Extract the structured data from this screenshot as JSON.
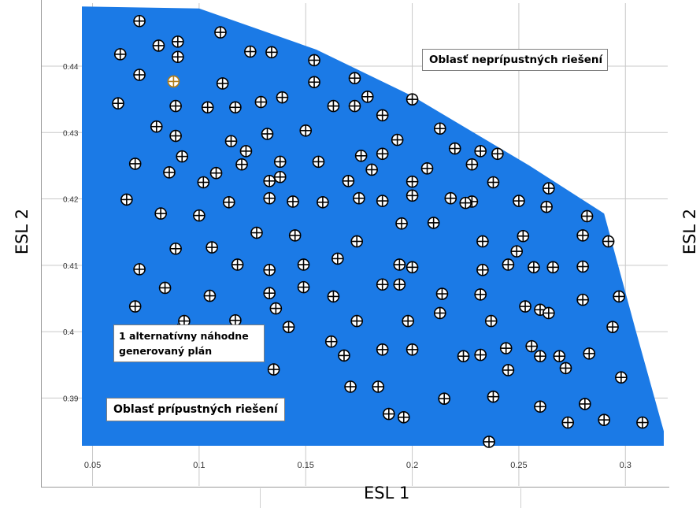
{
  "chart_data": {
    "type": "scatter",
    "xlabel": "ESL 1",
    "ylabel": "ESL 2",
    "right_ylabel": "ESL 2",
    "xlim": [
      0.045,
      0.318
    ],
    "ylim": [
      0.3828,
      0.4495
    ],
    "x_ticks": [
      {
        "value": 0.05,
        "label": "0.05"
      },
      {
        "value": 0.1,
        "label": "0.1"
      },
      {
        "value": 0.15,
        "label": "0.15"
      },
      {
        "value": 0.2,
        "label": "0.2"
      },
      {
        "value": 0.25,
        "label": "0.25"
      },
      {
        "value": 0.3,
        "label": "0.3"
      }
    ],
    "y_ticks": [
      {
        "value": 0.39,
        "label": "0.39"
      },
      {
        "value": 0.4,
        "label": "0.4"
      },
      {
        "value": 0.41,
        "label": "0.41"
      },
      {
        "value": 0.42,
        "label": "0.42"
      },
      {
        "value": 0.43,
        "label": "0.43"
      },
      {
        "value": 0.44,
        "label": "0.44"
      }
    ],
    "grid": true,
    "feasible_region": {
      "color": "#1b7ae6",
      "label": "Oblasť prípustných riešení",
      "boundary": [
        [
          0.045,
          0.449
        ],
        [
          0.1,
          0.4487
        ],
        [
          0.155,
          0.4425
        ],
        [
          0.2,
          0.4355
        ],
        [
          0.255,
          0.425
        ],
        [
          0.29,
          0.4178
        ],
        [
          0.305,
          0.4
        ],
        [
          0.318,
          0.385
        ],
        [
          0.318,
          0.3828
        ],
        [
          0.045,
          0.3828
        ]
      ]
    },
    "infeasible_region": {
      "label": "Oblasť neprípustných riešení"
    },
    "annotation": {
      "text": "1 alternatívny náhodne generovaný plán",
      "x": 0.09,
      "y": 0.4004
    },
    "marker_color": "#000000",
    "highlight_color": "#b07d1a",
    "highlighted_point": [
      0.088,
      0.4377
    ],
    "points": [
      [
        0.072,
        0.4468
      ],
      [
        0.063,
        0.4418
      ],
      [
        0.081,
        0.4431
      ],
      [
        0.09,
        0.4437
      ],
      [
        0.09,
        0.4414
      ],
      [
        0.072,
        0.4387
      ],
      [
        0.11,
        0.4451
      ],
      [
        0.062,
        0.4344
      ],
      [
        0.088,
        0.4377
      ],
      [
        0.111,
        0.4374
      ],
      [
        0.089,
        0.434
      ],
      [
        0.104,
        0.4338
      ],
      [
        0.117,
        0.4338
      ],
      [
        0.129,
        0.4346
      ],
      [
        0.124,
        0.4422
      ],
      [
        0.134,
        0.4421
      ],
      [
        0.154,
        0.4409
      ],
      [
        0.154,
        0.4376
      ],
      [
        0.139,
        0.4353
      ],
      [
        0.163,
        0.434
      ],
      [
        0.173,
        0.4382
      ],
      [
        0.179,
        0.4354
      ],
      [
        0.173,
        0.434
      ],
      [
        0.186,
        0.4326
      ],
      [
        0.2,
        0.435
      ],
      [
        0.08,
        0.4309
      ],
      [
        0.089,
        0.4295
      ],
      [
        0.115,
        0.4287
      ],
      [
        0.122,
        0.4272
      ],
      [
        0.132,
        0.4298
      ],
      [
        0.15,
        0.4303
      ],
      [
        0.07,
        0.4253
      ],
      [
        0.086,
        0.424
      ],
      [
        0.092,
        0.4264
      ],
      [
        0.102,
        0.4225
      ],
      [
        0.108,
        0.4239
      ],
      [
        0.12,
        0.4252
      ],
      [
        0.133,
        0.4227
      ],
      [
        0.138,
        0.4256
      ],
      [
        0.138,
        0.4233
      ],
      [
        0.156,
        0.4256
      ],
      [
        0.176,
        0.4265
      ],
      [
        0.186,
        0.4268
      ],
      [
        0.193,
        0.4289
      ],
      [
        0.181,
        0.4244
      ],
      [
        0.17,
        0.4227
      ],
      [
        0.2,
        0.4226
      ],
      [
        0.207,
        0.4246
      ],
      [
        0.213,
        0.4306
      ],
      [
        0.22,
        0.4276
      ],
      [
        0.228,
        0.4252
      ],
      [
        0.232,
        0.4272
      ],
      [
        0.24,
        0.4268
      ],
      [
        0.238,
        0.4225
      ],
      [
        0.066,
        0.4199
      ],
      [
        0.082,
        0.4178
      ],
      [
        0.1,
        0.4175
      ],
      [
        0.114,
        0.4195
      ],
      [
        0.133,
        0.4201
      ],
      [
        0.144,
        0.4196
      ],
      [
        0.158,
        0.4195
      ],
      [
        0.175,
        0.4201
      ],
      [
        0.186,
        0.4197
      ],
      [
        0.2,
        0.4205
      ],
      [
        0.218,
        0.4201
      ],
      [
        0.228,
        0.4196
      ],
      [
        0.225,
        0.4194
      ],
      [
        0.25,
        0.4197
      ],
      [
        0.264,
        0.4216
      ],
      [
        0.263,
        0.4188
      ],
      [
        0.282,
        0.4174
      ],
      [
        0.127,
        0.4149
      ],
      [
        0.145,
        0.4145
      ],
      [
        0.174,
        0.4136
      ],
      [
        0.195,
        0.4163
      ],
      [
        0.21,
        0.4164
      ],
      [
        0.233,
        0.4136
      ],
      [
        0.252,
        0.4144
      ],
      [
        0.249,
        0.4121
      ],
      [
        0.28,
        0.4145
      ],
      [
        0.292,
        0.4136
      ],
      [
        0.089,
        0.4125
      ],
      [
        0.106,
        0.4127
      ],
      [
        0.118,
        0.4101
      ],
      [
        0.133,
        0.4093
      ],
      [
        0.149,
        0.4101
      ],
      [
        0.165,
        0.411
      ],
      [
        0.194,
        0.4101
      ],
      [
        0.2,
        0.4097
      ],
      [
        0.233,
        0.4093
      ],
      [
        0.245,
        0.4101
      ],
      [
        0.257,
        0.4097
      ],
      [
        0.266,
        0.4097
      ],
      [
        0.28,
        0.4098
      ],
      [
        0.072,
        0.4094
      ],
      [
        0.084,
        0.4066
      ],
      [
        0.105,
        0.4054
      ],
      [
        0.133,
        0.4058
      ],
      [
        0.149,
        0.4067
      ],
      [
        0.163,
        0.4053
      ],
      [
        0.186,
        0.4071
      ],
      [
        0.194,
        0.4071
      ],
      [
        0.214,
        0.4057
      ],
      [
        0.232,
        0.4056
      ],
      [
        0.07,
        0.4038
      ],
      [
        0.093,
        0.4016
      ],
      [
        0.117,
        0.4017
      ],
      [
        0.136,
        0.4035
      ],
      [
        0.142,
        0.4007
      ],
      [
        0.174,
        0.4016
      ],
      [
        0.198,
        0.4016
      ],
      [
        0.213,
        0.4028
      ],
      [
        0.237,
        0.4016
      ],
      [
        0.253,
        0.4038
      ],
      [
        0.26,
        0.4033
      ],
      [
        0.264,
        0.4028
      ],
      [
        0.28,
        0.4048
      ],
      [
        0.297,
        0.4053
      ],
      [
        0.294,
        0.4007
      ],
      [
        0.162,
        0.3985
      ],
      [
        0.168,
        0.3964
      ],
      [
        0.186,
        0.3973
      ],
      [
        0.2,
        0.3973
      ],
      [
        0.224,
        0.3963
      ],
      [
        0.232,
        0.3965
      ],
      [
        0.244,
        0.3975
      ],
      [
        0.256,
        0.3978
      ],
      [
        0.26,
        0.3963
      ],
      [
        0.269,
        0.3963
      ],
      [
        0.283,
        0.3967
      ],
      [
        0.135,
        0.3943
      ],
      [
        0.171,
        0.3917
      ],
      [
        0.184,
        0.3917
      ],
      [
        0.215,
        0.3899
      ],
      [
        0.238,
        0.3902
      ],
      [
        0.245,
        0.3942
      ],
      [
        0.272,
        0.3945
      ],
      [
        0.26,
        0.3887
      ],
      [
        0.281,
        0.3891
      ],
      [
        0.298,
        0.3931
      ],
      [
        0.189,
        0.3876
      ],
      [
        0.196,
        0.3871
      ],
      [
        0.273,
        0.3863
      ],
      [
        0.29,
        0.3867
      ],
      [
        0.308,
        0.3863
      ],
      [
        0.236,
        0.3834
      ]
    ]
  },
  "y_tick_label_color": "#333333"
}
